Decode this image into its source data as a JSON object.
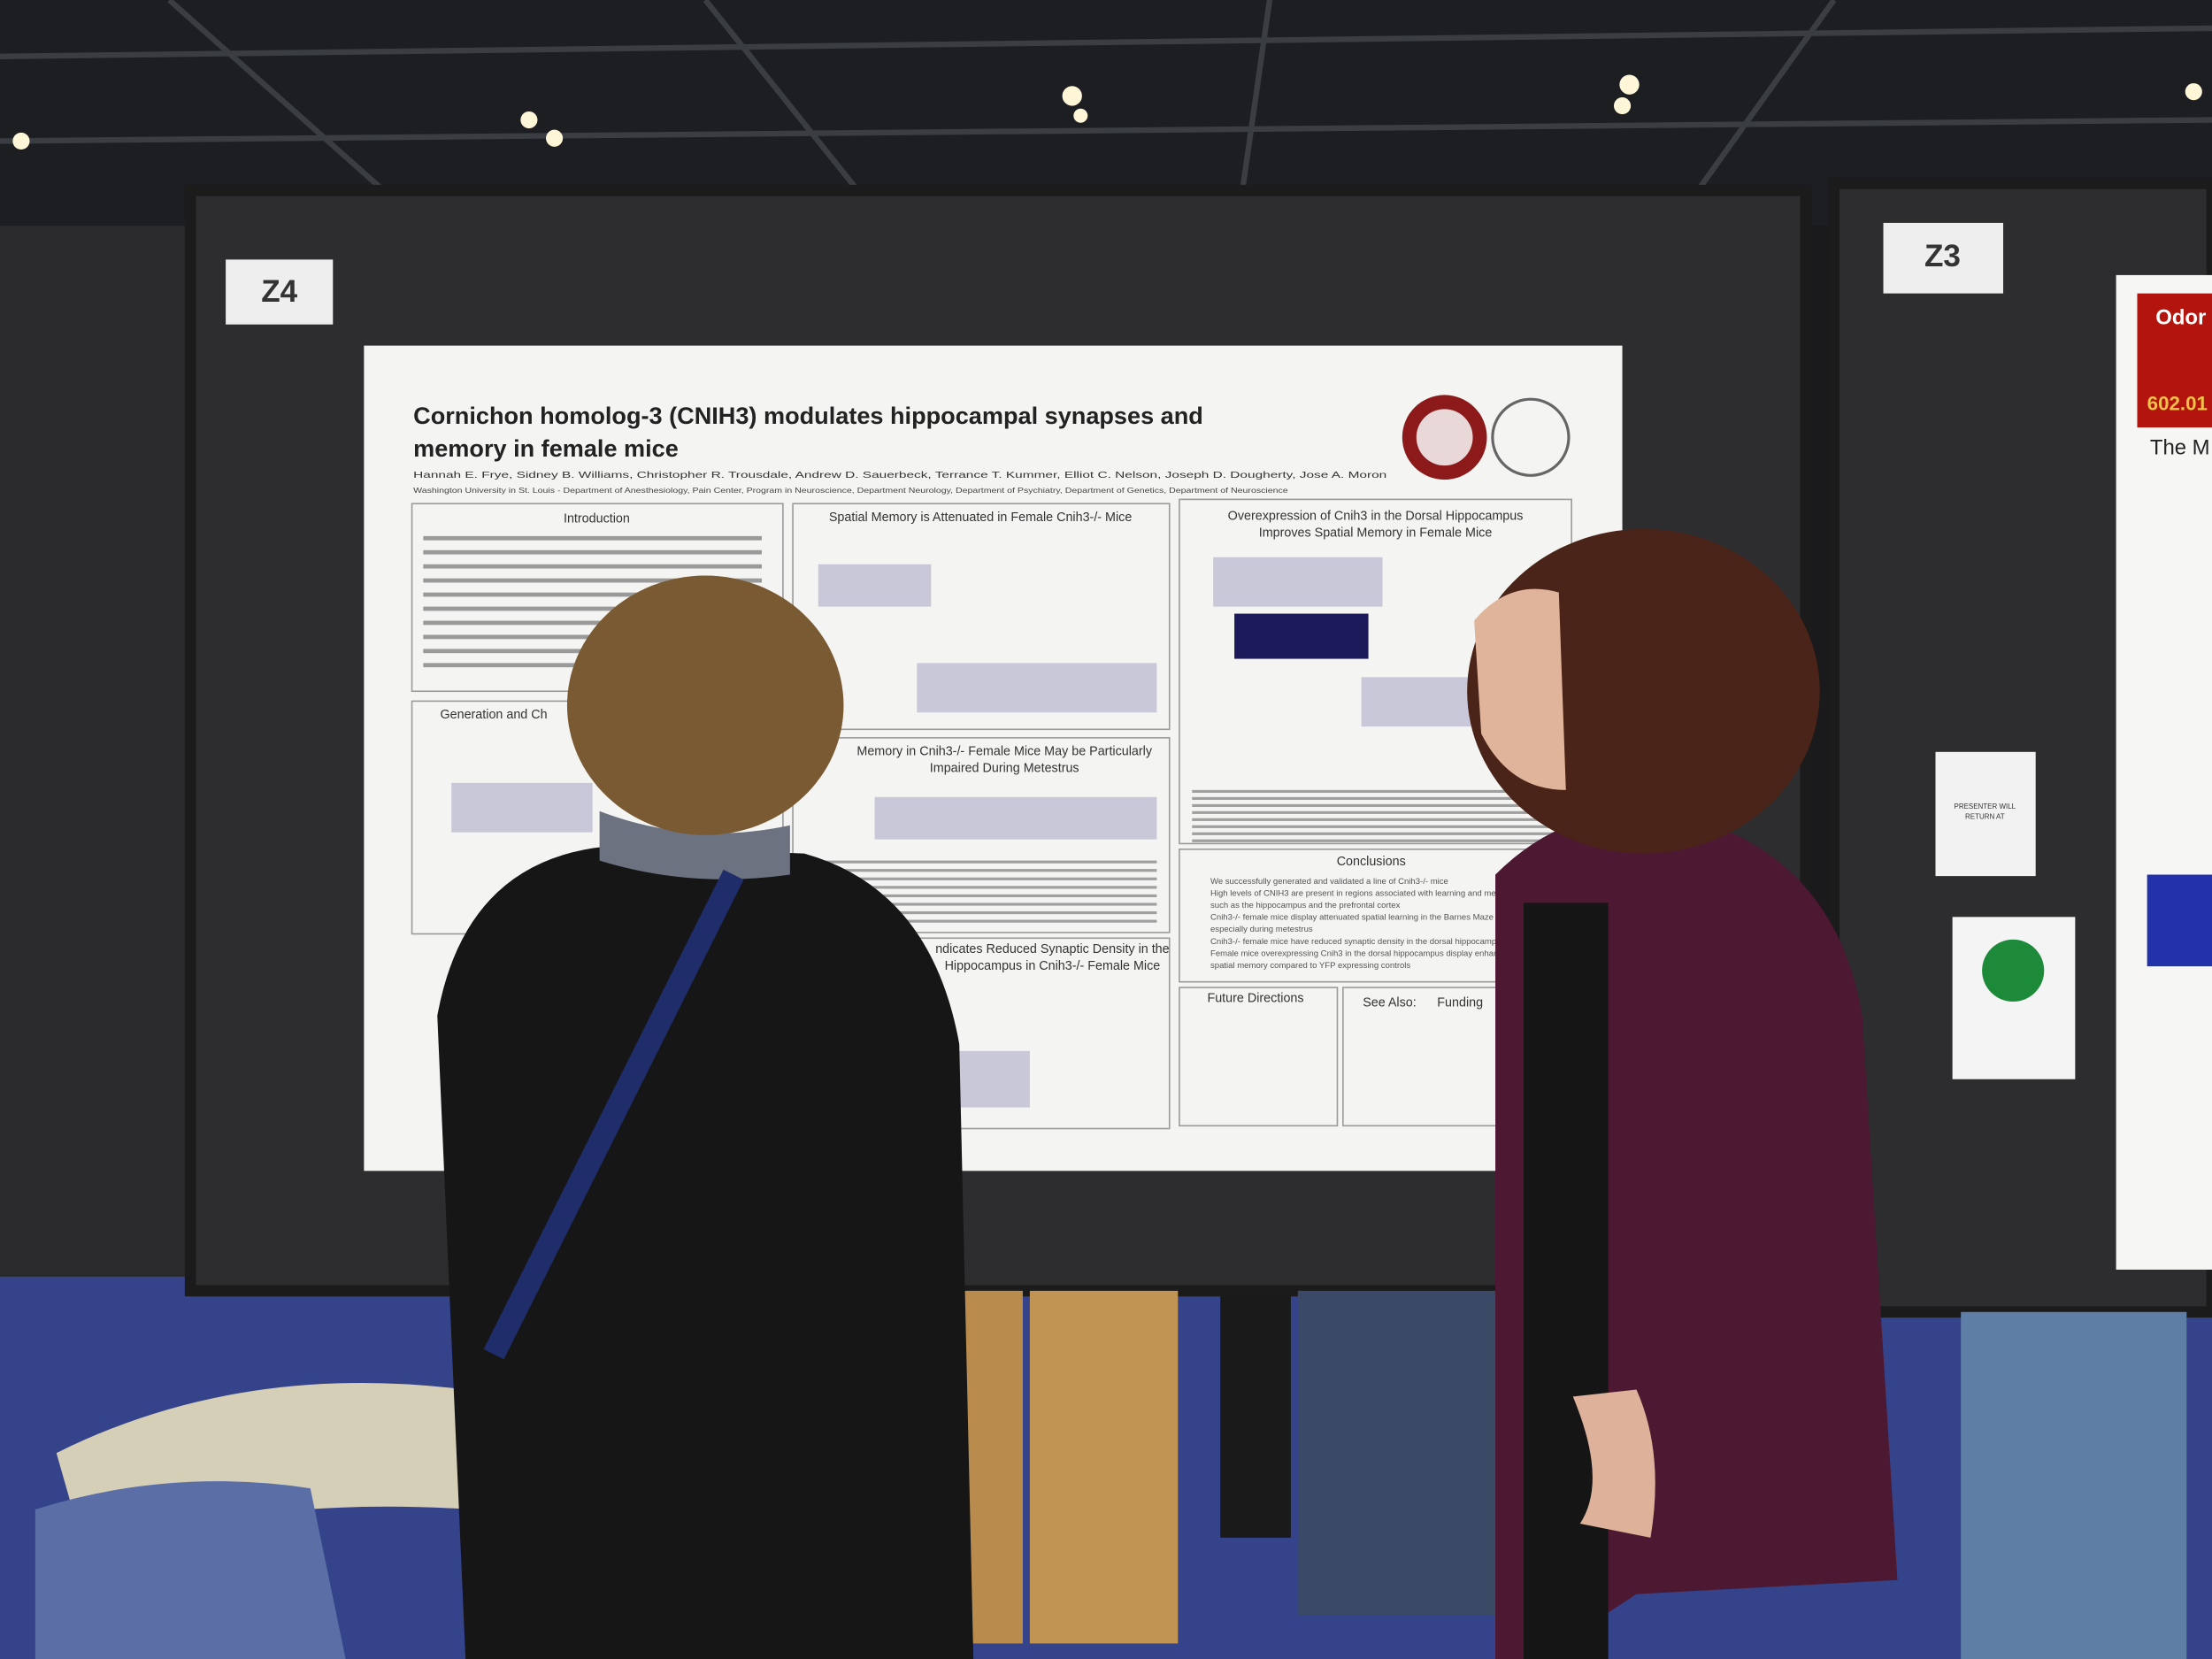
{
  "booths": [
    {
      "label": "Z4"
    },
    {
      "label": "Z3"
    }
  ],
  "poster": {
    "title": [
      "Cornichon homolog-3 (CNIH3) modulates hippocampal synapses and",
      "memory in female mice"
    ],
    "authors": "Hannah E. Frye, Sidney B. Williams, Christopher R. Trousdale, Andrew D. Sauerbeck, Terrance T. Kummer, Elliot C. Nelson, Joseph D. Dougherty, Jose A. Moron",
    "affiliation": "Washington University in St. Louis - Department of Anesthesiology, Pain Center, Program in Neuroscience, Department Neurology, Department of Psychiatry, Department of Genetics, Department of Neuroscience",
    "sections": [
      {
        "lines": [
          "Introduction"
        ]
      },
      {
        "lines": [
          "Spatial Memory is Attenuated in Female Cnih3-/- Mice"
        ]
      },
      {
        "lines": [
          "Overexpression of Cnih3 in the Dorsal Hippocampus",
          "Improves Spatial Memory in Female Mice"
        ]
      },
      {
        "lines": [
          "Generation and Ch"
        ]
      },
      {
        "lines": [
          "Memory in Cnih3-/- Female Mice May be Particularly",
          "Impaired During Metestrus"
        ]
      },
      {
        "lines": [
          "ndicates Reduced Synaptic Density in the",
          "Hippocampus in Cnih3-/- Female Mice"
        ]
      },
      {
        "lines": [
          "Conclusions"
        ]
      },
      {
        "lines": [
          "Future Directions"
        ]
      },
      {
        "lines": [
          "See Also:"
        ]
      },
      {
        "lines": [
          "Funding"
        ]
      }
    ],
    "conclusions": [
      "We successfully generated and validated a line of Cnih3-/- mice",
      "High levels of CNIH3 are present in regions associated with learning and memory",
      "such as the hippocampus and the prefrontal cortex",
      "Cnih3-/- female mice display attenuated spatial learning in the Barnes Maze",
      "especially during metestrus",
      "Cnih3-/- female mice have reduced synaptic density in the dorsal hippocampus",
      "Female mice overexpressing Cnih3 in the dorsal hippocampus display enhanced",
      "spatial memory compared to YFP expressing controls"
    ]
  },
  "right_poster": {
    "header": "Odor",
    "number": "602.01",
    "heading": "The M"
  },
  "sign": [
    "PRESENTER WILL",
    "RETURN AT"
  ]
}
